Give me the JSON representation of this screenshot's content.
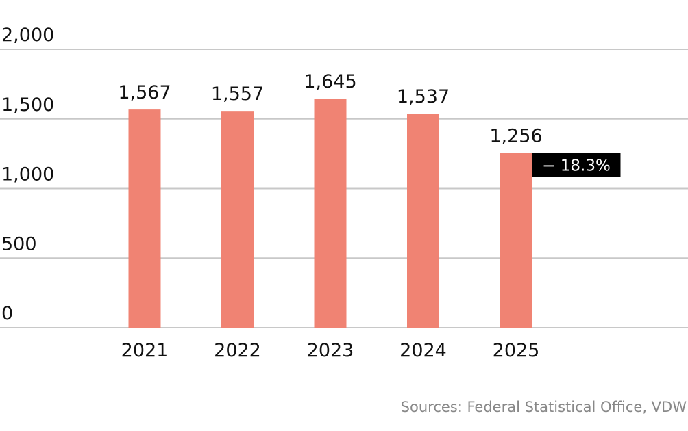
{
  "chart_data": {
    "type": "bar",
    "categories": [
      "2021",
      "2022",
      "2023",
      "2024",
      "2025"
    ],
    "values": [
      1567,
      1557,
      1645,
      1537,
      1256
    ],
    "value_labels": [
      "1,567",
      "1,557",
      "1,645",
      "1,537",
      "1,256"
    ],
    "color": "#f08373",
    "ylim": [
      0,
      2000
    ],
    "yticks": [
      0,
      500,
      {
        "value": 1000,
        "label": "1,000"
      },
      {
        "value": 1500,
        "label": "1,500"
      },
      {
        "value": 2000,
        "label": "2,000"
      }
    ],
    "grid": true,
    "annotation": "− 18.3%",
    "source": "Sources: Federal Statistical Office, VDW"
  }
}
